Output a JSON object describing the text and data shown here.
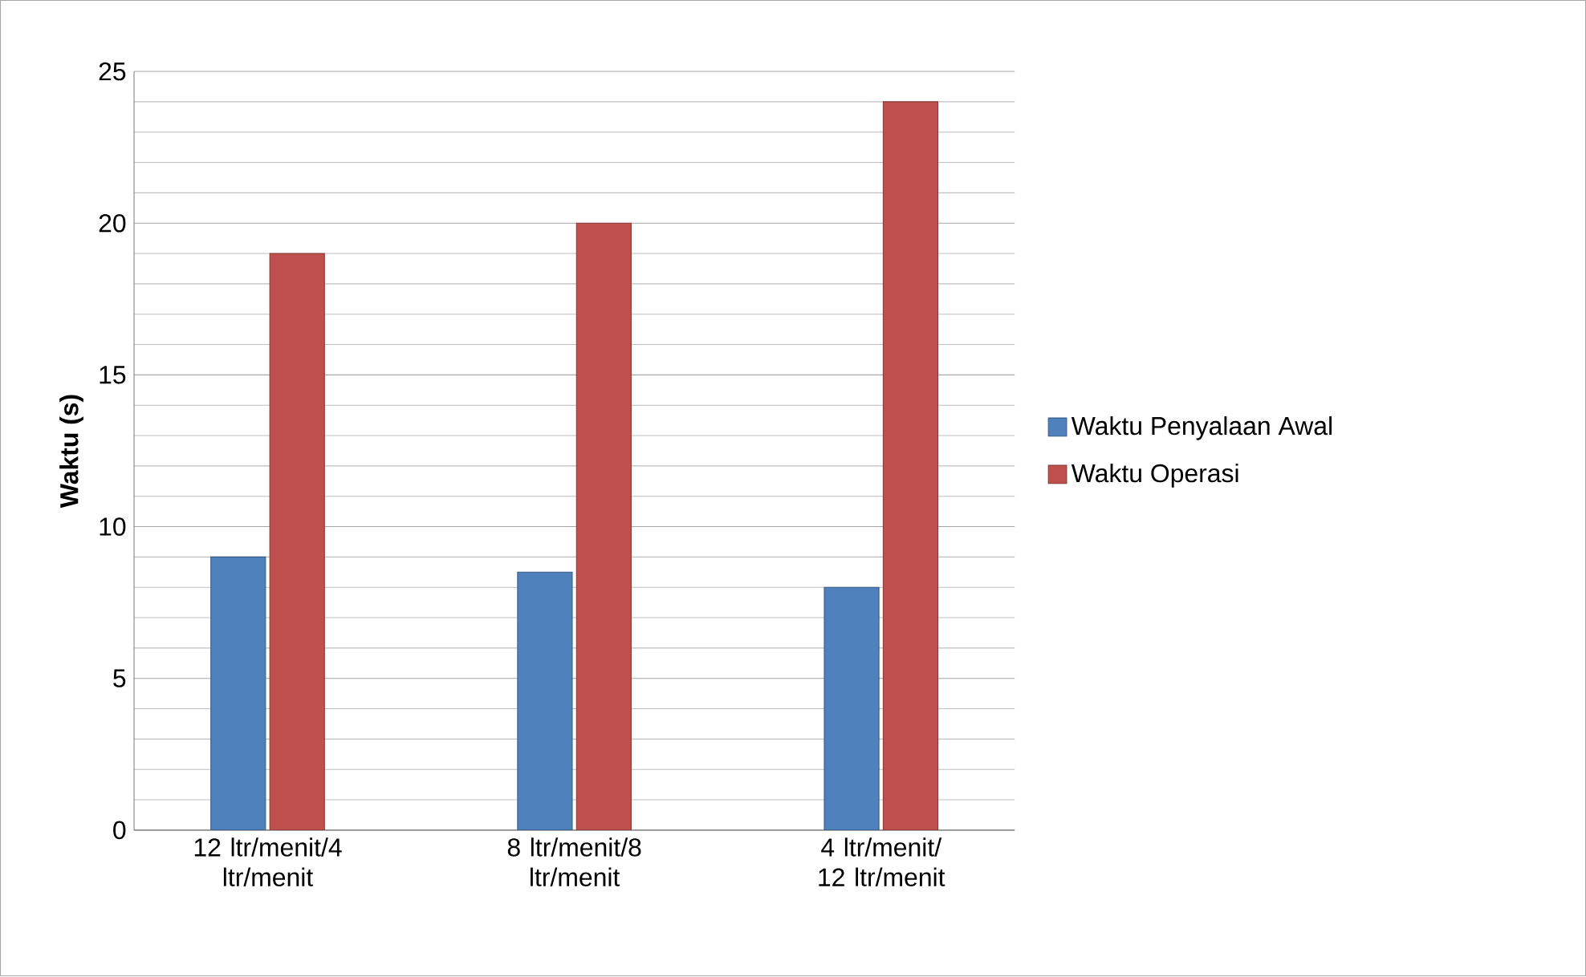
{
  "chart_data": {
    "type": "bar",
    "ylabel": "Waktu (s)",
    "categories": [
      "12 ltr/menit/4 ltr/menit",
      "8 ltr/menit/8 ltr/menit",
      "4 ltr/menit/ 12 ltr/menit"
    ],
    "series": [
      {
        "name": "Waktu Penyalaan Awal",
        "color": "#4f81bd",
        "values": [
          9,
          8.5,
          8
        ]
      },
      {
        "name": "Waktu Operasi",
        "color": "#c0504d",
        "values": [
          19,
          20,
          24
        ]
      }
    ],
    "ylim": [
      0,
      25
    ],
    "yticks": [
      0,
      5,
      10,
      15,
      20,
      25
    ],
    "grid": true,
    "legend": "right"
  }
}
